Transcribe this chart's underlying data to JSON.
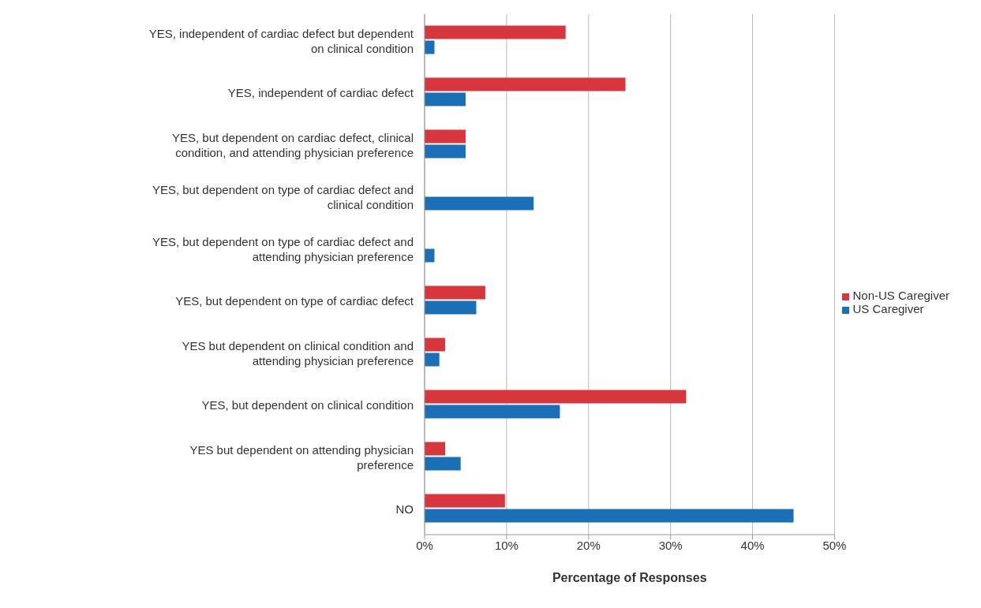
{
  "chart_data": {
    "type": "bar",
    "orientation": "horizontal",
    "xlabel": "Percentage of Responses",
    "categories": [
      "YES, independent of cardiac defect but dependent on clinical condition",
      "YES, independent of cardiac defect",
      "YES, but dependent on cardiac defect, clinical condition, and attending physician preference",
      "YES, but dependent on type of cardiac defect and clinical condition",
      "YES, but dependent on type of cardiac defect and attending physician preference",
      "YES, but dependent on type of cardiac defect",
      "YES but dependent on clinical condition and attending physician preference",
      "YES, but dependent on clinical condition",
      "YES but dependent on attending  physician preference",
      "NO"
    ],
    "series": [
      {
        "name": "Non-US Caregiver",
        "color": "#d7373c",
        "values": [
          17.2,
          24.5,
          5,
          0,
          0,
          7.4,
          2.5,
          31.9,
          2.5,
          9.8
        ]
      },
      {
        "name": "US Caregiver",
        "color": "#1a6fb6",
        "values": [
          1.2,
          5,
          5,
          13.3,
          1.2,
          6.3,
          1.8,
          16.5,
          4.4,
          45
        ]
      }
    ],
    "xlim": [
      0,
      50
    ],
    "xticks": [
      {
        "value": 0,
        "label": "0%"
      },
      {
        "value": 10,
        "label": "10%"
      },
      {
        "value": 20,
        "label": "20%"
      },
      {
        "value": 30,
        "label": "30%"
      },
      {
        "value": 40,
        "label": "40%"
      },
      {
        "value": 50,
        "label": "50%"
      }
    ],
    "grid": "x",
    "legend": "right"
  }
}
